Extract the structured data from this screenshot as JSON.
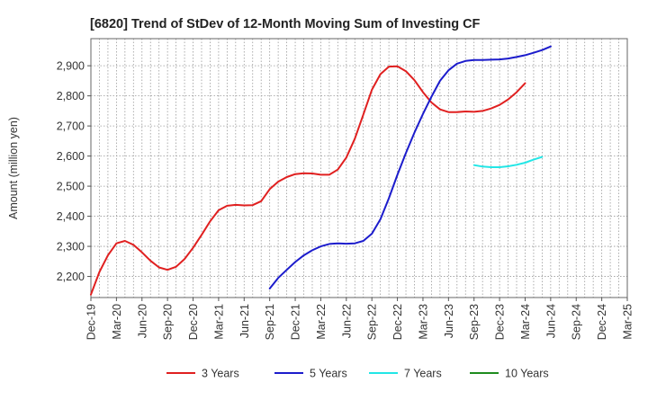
{
  "chart_data": {
    "type": "line",
    "title": "[6820]  Trend of StDev of 12-Month Moving Sum of Investing CF",
    "ylabel": "Amount (million yen)",
    "xlabel": "",
    "ylim": [
      2130,
      2990
    ],
    "yticks": [
      2200,
      2300,
      2400,
      2500,
      2600,
      2700,
      2800,
      2900
    ],
    "ytick_labels": [
      "2,200",
      "2,300",
      "2,400",
      "2,500",
      "2,600",
      "2,700",
      "2,800",
      "2,900"
    ],
    "x_start": "Dec-19",
    "x_end": "Mar-25",
    "xtick_labels": [
      "Dec-19",
      "Mar-20",
      "Jun-20",
      "Sep-20",
      "Dec-20",
      "Mar-21",
      "Jun-21",
      "Sep-21",
      "Dec-21",
      "Mar-22",
      "Jun-22",
      "Sep-22",
      "Dec-22",
      "Mar-23",
      "Jun-23",
      "Sep-23",
      "Dec-23",
      "Mar-24",
      "Jun-24",
      "Sep-24",
      "Dec-24",
      "Mar-25"
    ],
    "grid": true,
    "legend_position": "bottom",
    "series": [
      {
        "name": "3 Years",
        "color": "#e02020",
        "start": "Dec-19",
        "values": [
          2140,
          2215,
          2270,
          2310,
          2318,
          2305,
          2280,
          2252,
          2230,
          2222,
          2232,
          2258,
          2295,
          2338,
          2383,
          2420,
          2435,
          2438,
          2436,
          2437,
          2450,
          2490,
          2515,
          2530,
          2540,
          2543,
          2542,
          2538,
          2538,
          2555,
          2595,
          2658,
          2738,
          2820,
          2872,
          2897,
          2898,
          2882,
          2852,
          2812,
          2778,
          2755,
          2746,
          2746,
          2748,
          2747,
          2750,
          2758,
          2770,
          2788,
          2812,
          2842
        ]
      },
      {
        "name": "5 Years",
        "color": "#1c1ccc",
        "start": "Sep-21",
        "values": [
          2160,
          2195,
          2222,
          2248,
          2270,
          2287,
          2300,
          2308,
          2310,
          2309,
          2310,
          2318,
          2342,
          2390,
          2460,
          2538,
          2610,
          2678,
          2740,
          2797,
          2850,
          2885,
          2907,
          2916,
          2919,
          2919,
          2920,
          2921,
          2924,
          2929,
          2935,
          2943,
          2952,
          2964
        ]
      },
      {
        "name": "7 Years",
        "color": "#22e6e6",
        "start": "Sep-23",
        "values": [
          2570,
          2565,
          2563,
          2563,
          2566,
          2571,
          2578,
          2588,
          2597
        ]
      },
      {
        "name": "10 Years",
        "color": "#1e8c1e",
        "start": "Sep-23",
        "values": []
      }
    ]
  }
}
